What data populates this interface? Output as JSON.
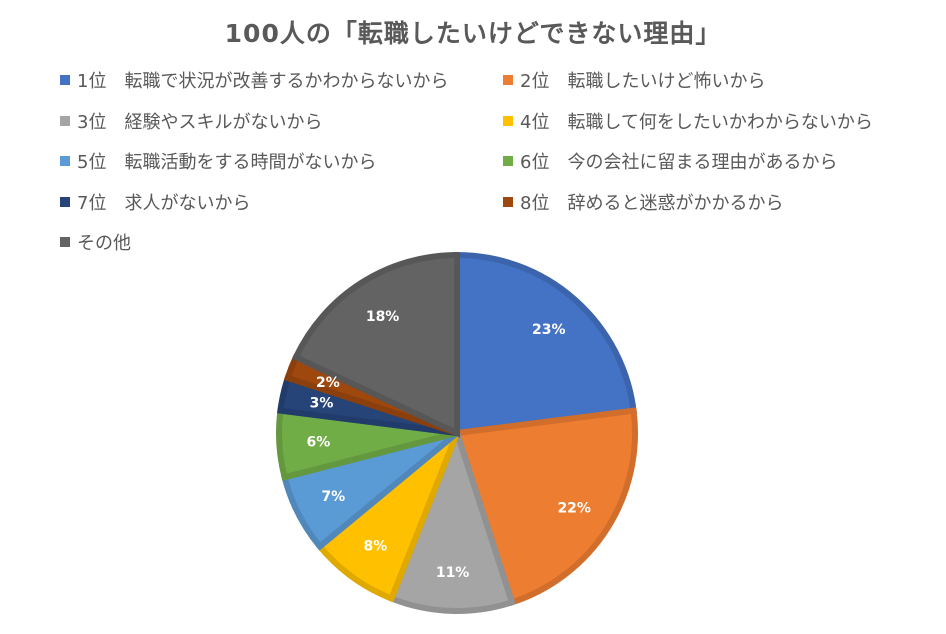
{
  "chart_data": {
    "type": "pie",
    "title": "100人の「転職したいけどできない理由」",
    "legend_position": "top",
    "slices": [
      {
        "label": "1位　転職で状況が改善するかわからないから",
        "value": 23,
        "data_label": "23%",
        "color": "#4472C4"
      },
      {
        "label": "2位　転職したいけど怖いから",
        "value": 22,
        "data_label": "22%",
        "color": "#ED7D31"
      },
      {
        "label": "3位　経験やスキルがないから",
        "value": 11,
        "data_label": "11%",
        "color": "#A5A5A5"
      },
      {
        "label": "4位　転職して何をしたいかわからないから",
        "value": 8,
        "data_label": "8%",
        "color": "#FFC000"
      },
      {
        "label": "5位　転職活動をする時間がないから",
        "value": 7,
        "data_label": "7%",
        "color": "#5B9BD5"
      },
      {
        "label": "6位　今の会社に留まる理由があるから",
        "value": 6,
        "data_label": "6%",
        "color": "#70AD47"
      },
      {
        "label": "7位　求人がないから",
        "value": 3,
        "data_label": "3%",
        "color": "#264478"
      },
      {
        "label": "8位　辞めると迷惑がかかるから",
        "value": 2,
        "data_label": "2%",
        "color": "#9E480E"
      },
      {
        "label": "その他",
        "value": 18,
        "data_label": "18%",
        "color": "#636363"
      }
    ]
  }
}
